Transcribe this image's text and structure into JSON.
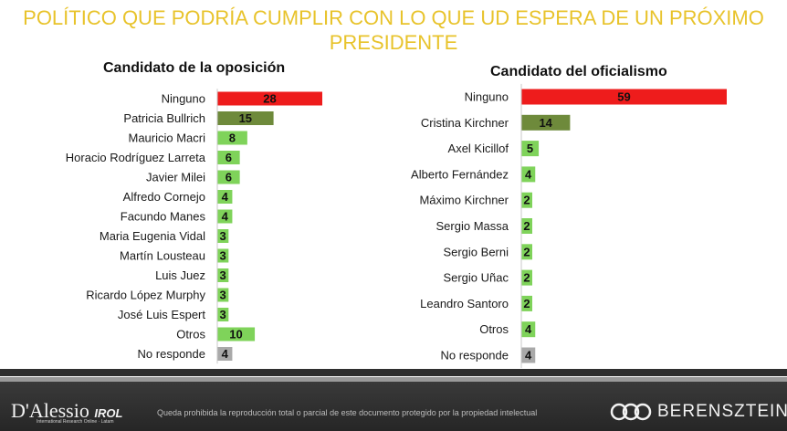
{
  "title_line1": "POLÍTICO QUE PODRÍA CUMPLIR CON LO QUE UD ESPERA DE UN PRÓXIMO",
  "title_line2": "PRESIDENTE",
  "colors": {
    "title": "#e8c32b",
    "first": "#ee1c1c",
    "second": "#6e8a3b",
    "rest": "#7fd35a",
    "no_responde": "#a9a9a9"
  },
  "chart_data": [
    {
      "type": "bar",
      "title": "Candidato de la oposición",
      "categories": [
        "Ninguno",
        "Patricia Bullrich",
        "Mauricio Macri",
        "Horacio Rodríguez Larreta",
        "Javier Milei",
        "Alfredo Cornejo",
        "Facundo Manes",
        "Maria Eugenia Vidal",
        "Martín Lousteau",
        "Luis Juez",
        "Ricardo López Murphy",
        "José Luis Espert",
        "Otros",
        "No responde"
      ],
      "values": [
        28,
        15,
        8,
        6,
        6,
        4,
        4,
        3,
        3,
        3,
        3,
        3,
        10,
        4
      ],
      "color_keys": [
        "first",
        "second",
        "rest",
        "rest",
        "rest",
        "rest",
        "rest",
        "rest",
        "rest",
        "rest",
        "rest",
        "rest",
        "rest",
        "no_responde"
      ]
    },
    {
      "type": "bar",
      "title": "Candidato del oficialismo",
      "categories": [
        "Ninguno",
        "Cristina Kirchner",
        "Axel Kicillof",
        "Alberto Fernández",
        "Máximo Kirchner",
        "Sergio Massa",
        "Sergio Berni",
        "Sergio Uñac",
        "Leandro Santoro",
        "Otros",
        "No responde"
      ],
      "values": [
        59,
        14,
        5,
        4,
        2,
        2,
        2,
        2,
        2,
        4,
        4
      ],
      "color_keys": [
        "first",
        "second",
        "rest",
        "rest",
        "rest",
        "rest",
        "rest",
        "rest",
        "rest",
        "rest",
        "no_responde"
      ]
    }
  ],
  "footer": {
    "brand_left": "D'Alessio",
    "brand_left_suffix": "IROL",
    "brand_left_sub": "International Research Online · Latam",
    "notice": "Queda prohibida la reproducción total o parcial de este documento protegido por la propiedad intelectual",
    "brand_right": "BERENSZTEIN"
  }
}
